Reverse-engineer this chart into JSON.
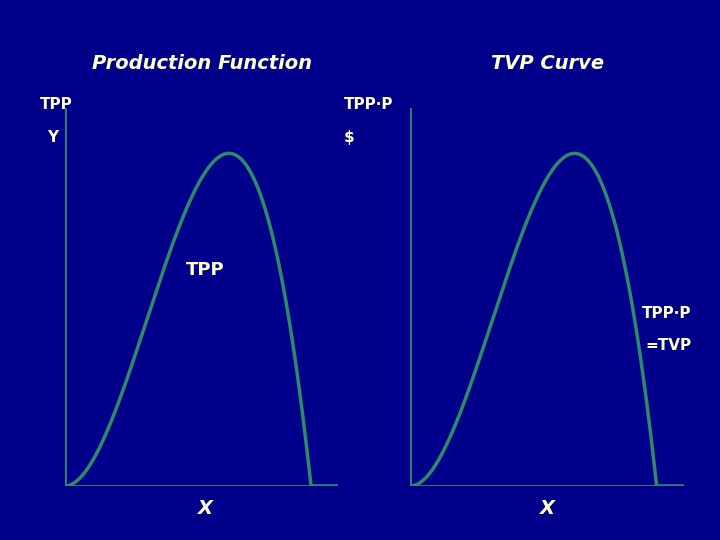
{
  "background_color": "#00008B",
  "curve_color": "#2E8B6A",
  "axis_color": "#2E8B6A",
  "text_color": "#FFFFCC",
  "title_left": "Production Function",
  "title_right": "TVP Curve",
  "label_tpp_y_line1": "TPP",
  "label_tpp_y_line2": "Y",
  "label_tvp_axis_line1": "TPP·P",
  "label_tvp_axis_line2": "$",
  "label_curve_left": "TPP",
  "label_curve_right_line1": "TPP·P",
  "label_curve_right_line2": "=TVP",
  "xlabel_left": "X",
  "xlabel_right": "X",
  "fig_width": 7.2,
  "fig_height": 5.4,
  "dpi": 100
}
